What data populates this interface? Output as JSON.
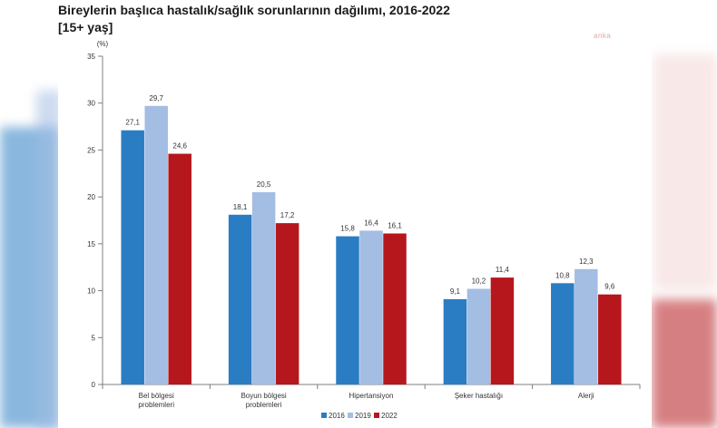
{
  "chart_data": {
    "type": "bar",
    "title": "Bireylerin başlıca hastalık/sağlık sorunlarının dağılımı, 2016-2022",
    "subtitle": "[15+ yaş]",
    "ylabel": "(%)",
    "xlabel": "",
    "ylim": [
      0,
      35
    ],
    "yticks": [
      0,
      5,
      10,
      15,
      20,
      25,
      30,
      35
    ],
    "grid": false,
    "legend_position": "bottom-center",
    "categories": [
      [
        "Bel bölgesi",
        "problemleri"
      ],
      [
        "Boyun bölgesi",
        "problemleri"
      ],
      [
        "Hipertansiyon"
      ],
      [
        "Şeker hastalığı"
      ],
      [
        "Alerji"
      ]
    ],
    "series": [
      {
        "name": "2016",
        "color": "#2a7dc2",
        "values": [
          27.1,
          18.1,
          15.8,
          9.1,
          10.8
        ],
        "labels": [
          "27,1",
          "18,1",
          "15,8",
          "9,1",
          "10,8"
        ]
      },
      {
        "name": "2019",
        "color": "#a3bde3",
        "values": [
          29.7,
          20.5,
          16.4,
          10.2,
          12.3
        ],
        "labels": [
          "29,7",
          "20,5",
          "16,4",
          "10,2",
          "12,3"
        ]
      },
      {
        "name": "2022",
        "color": "#b5171d",
        "values": [
          24.6,
          17.2,
          16.1,
          11.4,
          9.6
        ],
        "labels": [
          "24,6",
          "17,2",
          "16,1",
          "11,4",
          "9,6"
        ]
      }
    ]
  },
  "watermark": "anka"
}
